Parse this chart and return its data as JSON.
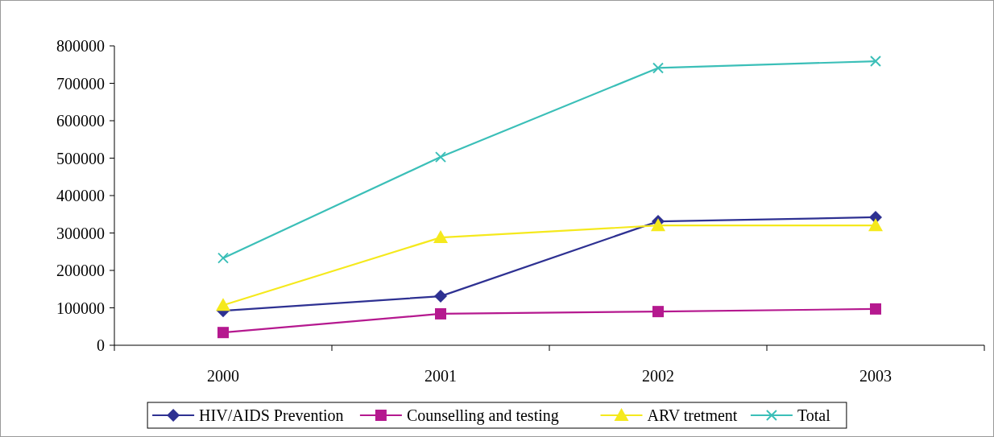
{
  "chart_data": {
    "type": "line",
    "categories": [
      "2000",
      "2001",
      "2002",
      "2003"
    ],
    "series": [
      {
        "name": "HIV/AIDS Prevention",
        "color": "#2e3192",
        "marker": "diamond",
        "values": [
          92000,
          131000,
          331000,
          342000
        ]
      },
      {
        "name": "Counselling and testing",
        "color": "#b5198f",
        "marker": "square",
        "values": [
          34000,
          84000,
          90000,
          97000
        ]
      },
      {
        "name": "ARV tretment",
        "color": "#f5e91d",
        "marker": "triangle",
        "values": [
          107000,
          288000,
          320000,
          320000
        ]
      },
      {
        "name": "Total",
        "color": "#3bbfb8",
        "marker": "cross",
        "values": [
          233000,
          503000,
          741000,
          759000
        ]
      }
    ],
    "ylim": [
      0,
      800000
    ],
    "yticks": [
      0,
      100000,
      200000,
      300000,
      400000,
      500000,
      600000,
      700000,
      800000
    ],
    "grid": false,
    "legend": "bottom"
  }
}
